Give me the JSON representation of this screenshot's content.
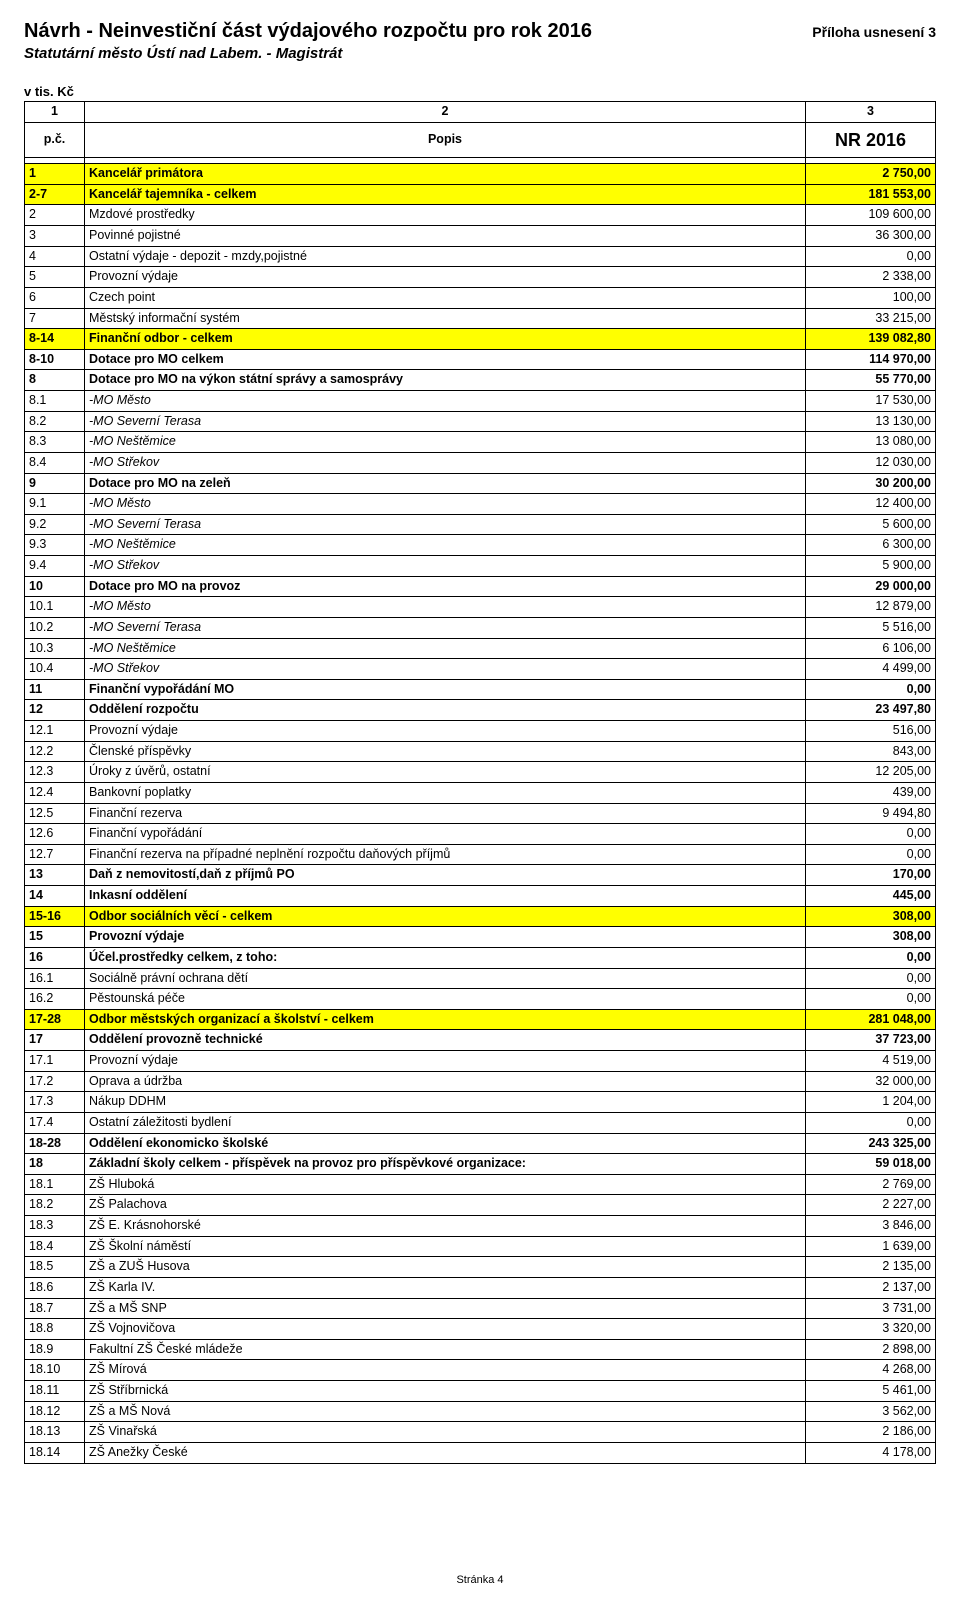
{
  "header": {
    "title": "Návrh - Neinvestiční část výdajového rozpočtu pro rok 2016",
    "annex": "Příloha usnesení 3",
    "subtitle": "Statutární město Ústí nad Labem. - Magistrát",
    "units": "v tis. Kč"
  },
  "table": {
    "col_headers": [
      "1",
      "2",
      "3"
    ],
    "row2": {
      "pc": "p.č.",
      "popis": "Popis",
      "nr": "NR 2016"
    },
    "rows": [
      {
        "n": "1",
        "d": "Kancelář primátora",
        "v": "2 750,00",
        "cls": "yellow"
      },
      {
        "n": "2-7",
        "d": "Kancelář tajemníka - celkem",
        "v": "181 553,00",
        "cls": "yellow"
      },
      {
        "n": "2",
        "d": "Mzdové prostředky",
        "v": "109 600,00",
        "cls": ""
      },
      {
        "n": "3",
        "d": "Povinné pojistné",
        "v": "36 300,00",
        "cls": ""
      },
      {
        "n": "4",
        "d": "Ostatní výdaje - depozit - mzdy,pojistné",
        "v": "0,00",
        "cls": ""
      },
      {
        "n": "5",
        "d": "Provozní výdaje",
        "v": "2 338,00",
        "cls": ""
      },
      {
        "n": "6",
        "d": "Czech point",
        "v": "100,00",
        "cls": ""
      },
      {
        "n": "7",
        "d": "Městský informační systém",
        "v": "33 215,00",
        "cls": ""
      },
      {
        "n": "8-14",
        "d": "Finanční odbor - celkem",
        "v": "139 082,80",
        "cls": "yellow"
      },
      {
        "n": "8-10",
        "d": "Dotace pro MO celkem",
        "v": "114 970,00",
        "cls": "bold"
      },
      {
        "n": "8",
        "d": "Dotace pro MO na výkon státní správy a samosprávy",
        "v": "55 770,00",
        "cls": "bold"
      },
      {
        "n": "8.1",
        "d": " -MO Město",
        "v": "17 530,00",
        "cls": "italic"
      },
      {
        "n": "8.2",
        "d": " -MO Severní Terasa",
        "v": "13 130,00",
        "cls": "italic"
      },
      {
        "n": "8.3",
        "d": " -MO Neštěmice",
        "v": "13 080,00",
        "cls": "italic"
      },
      {
        "n": "8.4",
        "d": " -MO Střekov",
        "v": "12 030,00",
        "cls": "italic"
      },
      {
        "n": "9",
        "d": "Dotace pro MO na zeleň",
        "v": "30 200,00",
        "cls": "bold"
      },
      {
        "n": "9.1",
        "d": " -MO Město",
        "v": "12 400,00",
        "cls": "italic"
      },
      {
        "n": "9.2",
        "d": " -MO Severní Terasa",
        "v": "5 600,00",
        "cls": "italic"
      },
      {
        "n": "9.3",
        "d": " -MO Neštěmice",
        "v": "6 300,00",
        "cls": "italic"
      },
      {
        "n": "9.4",
        "d": " -MO Střekov",
        "v": "5 900,00",
        "cls": "italic"
      },
      {
        "n": "10",
        "d": "Dotace pro MO na provoz",
        "v": "29 000,00",
        "cls": "bold"
      },
      {
        "n": "10.1",
        "d": " -MO Město",
        "v": "12 879,00",
        "cls": "italic"
      },
      {
        "n": "10.2",
        "d": " -MO Severní Terasa",
        "v": "5 516,00",
        "cls": "italic"
      },
      {
        "n": "10.3",
        "d": " -MO Neštěmice",
        "v": "6 106,00",
        "cls": "italic"
      },
      {
        "n": "10.4",
        "d": " -MO Střekov",
        "v": "4 499,00",
        "cls": "italic"
      },
      {
        "n": "11",
        "d": "Finanční vypořádání MO",
        "v": "0,00",
        "cls": "bold"
      },
      {
        "n": "12",
        "d": "Oddělení rozpočtu",
        "v": "23 497,80",
        "cls": "bold"
      },
      {
        "n": "12.1",
        "d": "Provozní výdaje",
        "v": "516,00",
        "cls": ""
      },
      {
        "n": "12.2",
        "d": "Členské příspěvky",
        "v": "843,00",
        "cls": ""
      },
      {
        "n": "12.3",
        "d": "Úroky z úvěrů, ostatní",
        "v": "12 205,00",
        "cls": ""
      },
      {
        "n": "12.4",
        "d": "Bankovní poplatky",
        "v": "439,00",
        "cls": ""
      },
      {
        "n": "12.5",
        "d": "Finanční rezerva",
        "v": "9 494,80",
        "cls": ""
      },
      {
        "n": "12.6",
        "d": "Finanční vypořádání",
        "v": "0,00",
        "cls": ""
      },
      {
        "n": "12.7",
        "d": "Finanční rezerva na případné neplnění rozpočtu daňových příjmů",
        "v": "0,00",
        "cls": ""
      },
      {
        "n": "13",
        "d": "Daň z nemovitostí,daň z příjmů PO",
        "v": "170,00",
        "cls": "bold"
      },
      {
        "n": "14",
        "d": "Inkasní oddělení",
        "v": "445,00",
        "cls": "bold"
      },
      {
        "n": "15-16",
        "d": "Odbor sociálních věcí - celkem",
        "v": "308,00",
        "cls": "yellow"
      },
      {
        "n": "15",
        "d": "Provozní výdaje",
        "v": "308,00",
        "cls": "bold"
      },
      {
        "n": "16",
        "d": "Účel.prostředky celkem, z toho:",
        "v": "0,00",
        "cls": "bold"
      },
      {
        "n": "16.1",
        "d": "Sociálně právní ochrana dětí",
        "v": "0,00",
        "cls": ""
      },
      {
        "n": "16.2",
        "d": "Pěstounská péče",
        "v": "0,00",
        "cls": ""
      },
      {
        "n": "17-28",
        "d": "Odbor městských organizací a školství - celkem",
        "v": "281 048,00",
        "cls": "yellow"
      },
      {
        "n": "17",
        "d": "Oddělení provozně technické",
        "v": "37 723,00",
        "cls": "bold"
      },
      {
        "n": "17.1",
        "d": "Provozní výdaje",
        "v": "4 519,00",
        "cls": ""
      },
      {
        "n": "17.2",
        "d": "Oprava a údržba",
        "v": "32 000,00",
        "cls": ""
      },
      {
        "n": "17.3",
        "d": "Nákup DDHM",
        "v": "1 204,00",
        "cls": ""
      },
      {
        "n": "17.4",
        "d": "Ostatní záležitosti bydlení",
        "v": "0,00",
        "cls": ""
      },
      {
        "n": "18-28",
        "d": "Oddělení ekonomicko školské",
        "v": "243 325,00",
        "cls": "bold"
      },
      {
        "n": "18",
        "d": "Základní školy celkem - příspěvek na provoz pro příspěvkové organizace:",
        "v": "59 018,00",
        "cls": "bold"
      },
      {
        "n": "18.1",
        "d": "ZŠ Hluboká",
        "v": "2 769,00",
        "cls": ""
      },
      {
        "n": "18.2",
        "d": "ZŠ Palachova",
        "v": "2 227,00",
        "cls": ""
      },
      {
        "n": "18.3",
        "d": "ZŠ E. Krásnohorské",
        "v": "3 846,00",
        "cls": ""
      },
      {
        "n": "18.4",
        "d": "ZŠ Školní náměstí",
        "v": "1 639,00",
        "cls": ""
      },
      {
        "n": "18.5",
        "d": "ZŠ a ZUŠ Husova",
        "v": "2 135,00",
        "cls": ""
      },
      {
        "n": "18.6",
        "d": "ZŠ Karla IV.",
        "v": "2 137,00",
        "cls": ""
      },
      {
        "n": "18.7",
        "d": "ZŠ a MŠ SNP",
        "v": "3 731,00",
        "cls": ""
      },
      {
        "n": "18.8",
        "d": "ZŠ Vojnovičova",
        "v": "3 320,00",
        "cls": ""
      },
      {
        "n": "18.9",
        "d": "Fakultní ZŠ České mládeže",
        "v": "2 898,00",
        "cls": ""
      },
      {
        "n": "18.10",
        "d": "ZŠ Mírová",
        "v": "4 268,00",
        "cls": ""
      },
      {
        "n": "18.11",
        "d": "ZŠ Stříbrnická",
        "v": "5 461,00",
        "cls": ""
      },
      {
        "n": "18.12",
        "d": "ZŠ a MŠ Nová",
        "v": "3 562,00",
        "cls": ""
      },
      {
        "n": "18.13",
        "d": "ZŠ Vinařská",
        "v": "2 186,00",
        "cls": ""
      },
      {
        "n": "18.14",
        "d": "ZŠ Anežky České",
        "v": "4 178,00",
        "cls": ""
      }
    ]
  },
  "footer": "Stránka 4",
  "style": {
    "highlight_color": "#ffff00",
    "background": "#ffffff",
    "border_color": "#000000",
    "title_fontsize": 20,
    "body_fontsize": 12.5
  }
}
